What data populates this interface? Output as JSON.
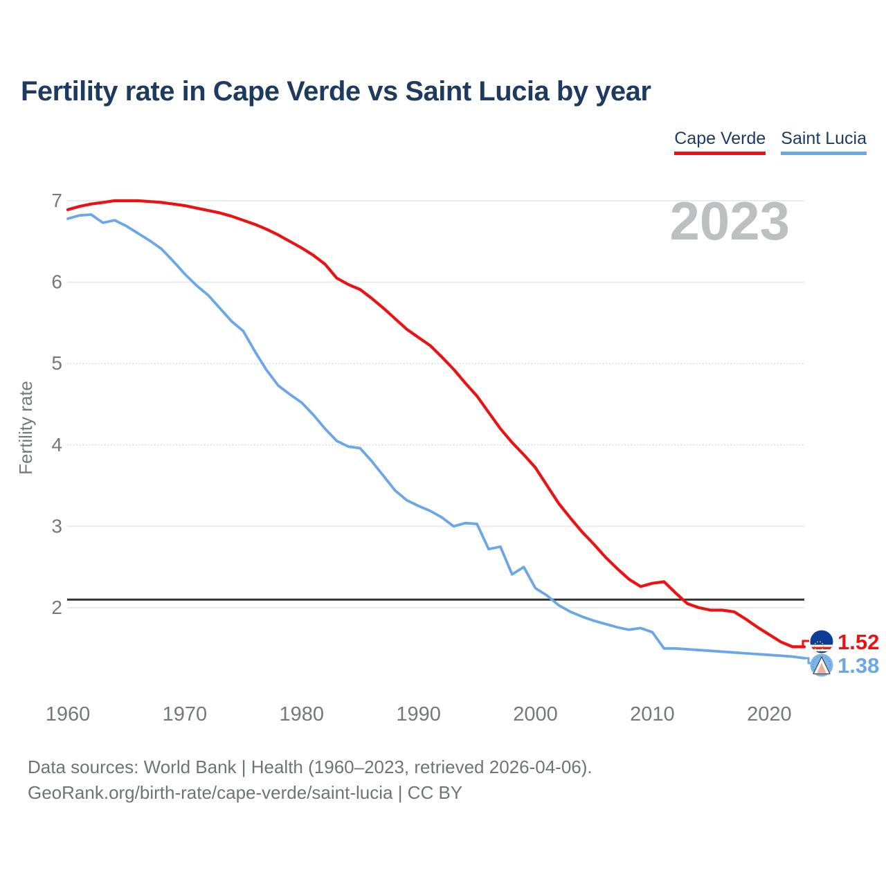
{
  "title": "Fertility rate in Cape Verde vs Saint Lucia by year",
  "legend": [
    {
      "label": "Cape Verde",
      "color": "#ee1111"
    },
    {
      "label": "Saint Lucia",
      "color": "#6aa6e8"
    }
  ],
  "watermark": "2023",
  "footer": {
    "line1": "Data sources: World Bank | Health (1960–2023, retrieved 2026-04-06).",
    "line2": "GeoRank.org/birth-rate/cape-verde/saint-lucia | CC BY"
  },
  "colors": {
    "cape_verde": "#ee1111",
    "saint_lucia": "#6aa6e8",
    "reference_line": "#333333",
    "axis_text": "#74777b",
    "watermark": "#bdbfc1",
    "title_text": "#1e3a5f"
  },
  "chart_data": {
    "type": "line",
    "title": "Fertility rate in Cape Verde vs Saint Lucia by year",
    "xlabel": "",
    "ylabel": "Fertility rate",
    "x_range": [
      1960,
      2023
    ],
    "years": [
      1960,
      1961,
      1962,
      1963,
      1964,
      1965,
      1966,
      1967,
      1968,
      1969,
      1970,
      1971,
      1972,
      1973,
      1974,
      1975,
      1976,
      1977,
      1978,
      1979,
      1980,
      1981,
      1982,
      1983,
      1984,
      1985,
      1986,
      1987,
      1988,
      1989,
      1990,
      1991,
      1992,
      1993,
      1994,
      1995,
      1996,
      1997,
      1998,
      1999,
      2000,
      2001,
      2002,
      2003,
      2004,
      2005,
      2006,
      2007,
      2008,
      2009,
      2010,
      2011,
      2012,
      2013,
      2014,
      2015,
      2016,
      2017,
      2018,
      2019,
      2020,
      2021,
      2022,
      2023
    ],
    "series": [
      {
        "name": "Cape Verde",
        "color": "#ee1111",
        "end_label": "1.52",
        "values": [
          6.89,
          6.93,
          6.96,
          6.98,
          7.0,
          7.0,
          7.0,
          6.99,
          6.98,
          6.96,
          6.94,
          6.91,
          6.88,
          6.85,
          6.81,
          6.76,
          6.71,
          6.65,
          6.58,
          6.5,
          6.42,
          6.33,
          6.22,
          6.05,
          5.97,
          5.91,
          5.8,
          5.68,
          5.55,
          5.42,
          5.32,
          5.22,
          5.08,
          4.93,
          4.76,
          4.6,
          4.4,
          4.2,
          4.03,
          3.88,
          3.72,
          3.5,
          3.28,
          3.1,
          2.93,
          2.78,
          2.62,
          2.48,
          2.35,
          2.26,
          2.3,
          2.32,
          2.18,
          2.05,
          2.0,
          1.97,
          1.97,
          1.95,
          1.86,
          1.76,
          1.67,
          1.58,
          1.52,
          1.52
        ]
      },
      {
        "name": "Saint Lucia",
        "color": "#6aa6e8",
        "end_label": "1.38",
        "values": [
          6.78,
          6.82,
          6.83,
          6.73,
          6.76,
          6.69,
          6.6,
          6.51,
          6.41,
          6.26,
          6.1,
          5.96,
          5.84,
          5.68,
          5.52,
          5.4,
          5.15,
          4.92,
          4.73,
          4.62,
          4.52,
          4.37,
          4.2,
          4.05,
          3.98,
          3.96,
          3.8,
          3.62,
          3.44,
          3.32,
          3.25,
          3.19,
          3.11,
          3.0,
          3.04,
          3.03,
          2.72,
          2.75,
          2.41,
          2.5,
          2.24,
          2.15,
          2.03,
          1.95,
          1.89,
          1.84,
          1.8,
          1.76,
          1.73,
          1.75,
          1.7,
          1.5,
          1.5,
          1.49,
          1.48,
          1.47,
          1.46,
          1.45,
          1.44,
          1.43,
          1.42,
          1.41,
          1.4,
          1.38
        ]
      }
    ],
    "reference_line": {
      "value": 2.1,
      "color": "#333333"
    },
    "xticks": [
      1960,
      1970,
      1980,
      1990,
      2000,
      2010,
      2020
    ],
    "yticks": [
      2,
      3,
      4,
      5,
      6,
      7
    ],
    "ylim": [
      1.25,
      7.05
    ],
    "grid": true,
    "legend_position": "top-right",
    "watermark": "2023"
  }
}
